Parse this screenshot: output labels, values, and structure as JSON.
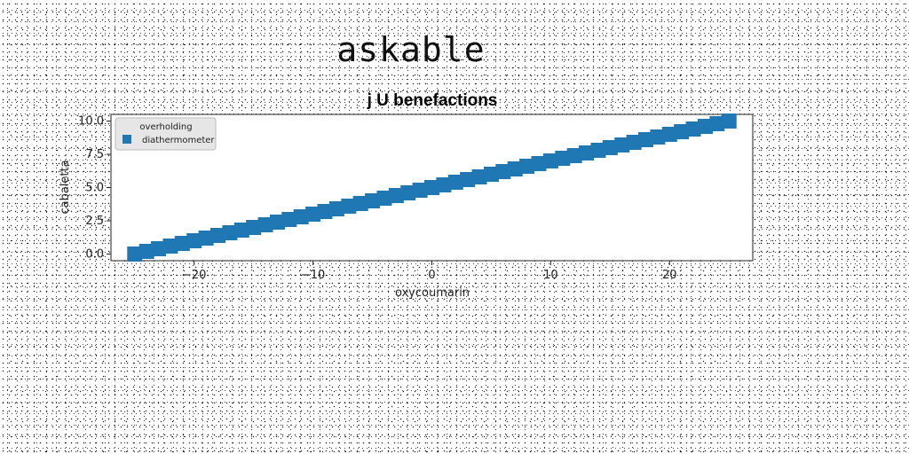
{
  "header": {
    "title": "askable"
  },
  "chart_data": {
    "type": "scatter",
    "title": "j U benefactions",
    "xlabel": "oxycoumarin",
    "ylabel": "cabaletta",
    "xlim": [
      -27,
      27
    ],
    "ylim": [
      -0.5,
      10.5
    ],
    "xticks": [
      -20,
      -10,
      0,
      10,
      20
    ],
    "xtick_labels": [
      "−20",
      "−10",
      "0",
      "10",
      "20"
    ],
    "yticks": [
      0,
      2.5,
      5,
      7.5,
      10
    ],
    "ytick_labels": [
      "0.0",
      "2.5",
      "5.0",
      "7.5",
      "10.0"
    ],
    "grid": false,
    "legend": {
      "title": "overholding",
      "placement": "top-left"
    },
    "series": [
      {
        "name": "diathermometer",
        "marker": "square",
        "color": "#1f77b4",
        "x": [
          -25.0,
          -24.0,
          -23.0,
          -22.0,
          -21.0,
          -20.0,
          -19.0,
          -18.0,
          -17.0,
          -16.0,
          -15.0,
          -14.0,
          -13.0,
          -12.0,
          -11.0,
          -10.0,
          -9.0,
          -8.0,
          -7.0,
          -6.0,
          -5.0,
          -4.0,
          -3.0,
          -2.0,
          -1.0,
          0.0,
          1.0,
          2.0,
          3.0,
          4.0,
          5.0,
          6.0,
          7.0,
          8.0,
          9.0,
          10.0,
          11.0,
          12.0,
          13.0,
          14.0,
          15.0,
          16.0,
          17.0,
          18.0,
          19.0,
          20.0,
          21.0,
          22.0,
          23.0,
          24.0,
          25.0
        ],
        "y": [
          0.0,
          0.2,
          0.4,
          0.6,
          0.8,
          1.0,
          1.2,
          1.4,
          1.6,
          1.8,
          2.0,
          2.2,
          2.4,
          2.6,
          2.8,
          3.0,
          3.2,
          3.4,
          3.6,
          3.8,
          4.0,
          4.2,
          4.4,
          4.6,
          4.8,
          5.0,
          5.2,
          5.4,
          5.6,
          5.8,
          6.0,
          6.2,
          6.4,
          6.6,
          6.8,
          7.0,
          7.2,
          7.4,
          7.6,
          7.8,
          8.0,
          8.2,
          8.4,
          8.6,
          8.8,
          9.0,
          9.2,
          9.4,
          9.6,
          9.8,
          10.0
        ]
      }
    ]
  }
}
